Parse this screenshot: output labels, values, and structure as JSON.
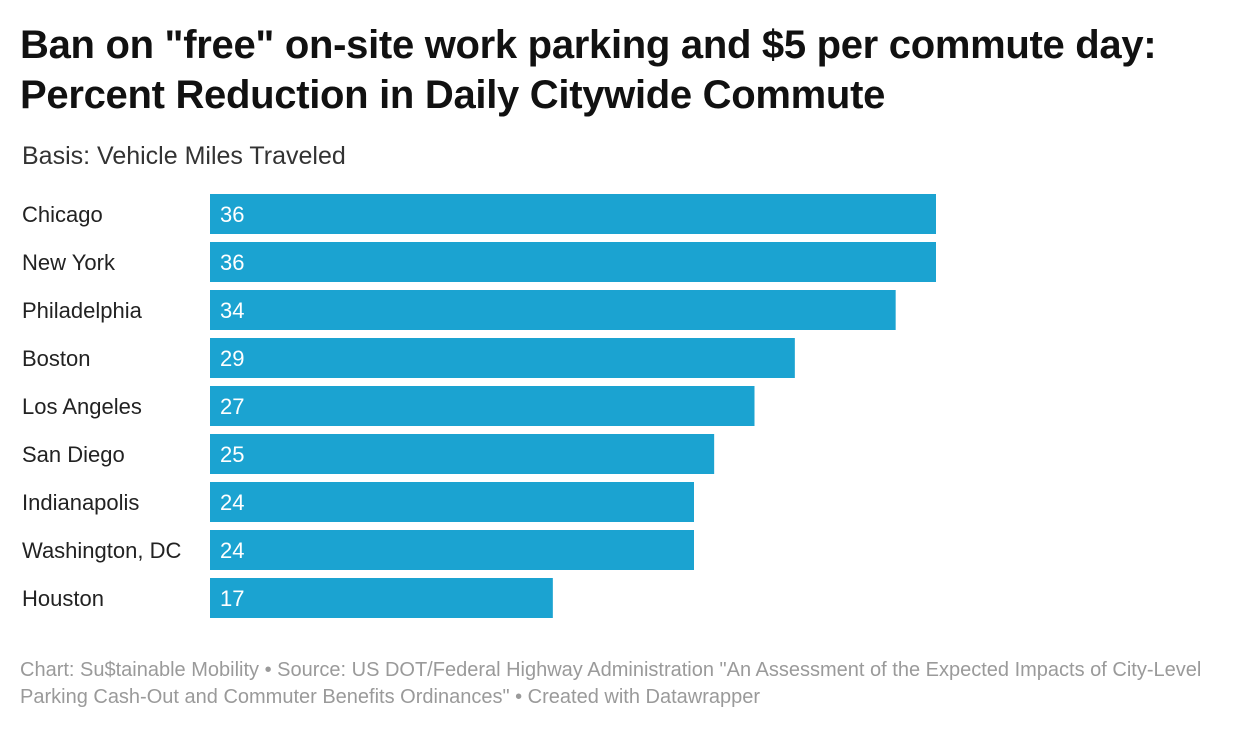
{
  "header": {
    "title_line1": "Ban on \"free\" on-site work parking and $5 per commute day:",
    "title_line2": "Percent Reduction in Daily Citywide Commute",
    "subtitle": "Basis: Vehicle Miles Traveled"
  },
  "footer": {
    "chart_credit": "Chart: Su$tainable Mobility",
    "separator1": " • ",
    "source": "Source: US DOT/Federal Highway Administration \"An Assessment of the Expected Impacts of City-Level Parking Cash-Out and Commuter Benefits Ordinances\"",
    "separator2": " • ",
    "created_with": "Created with Datawrapper"
  },
  "chart_data": {
    "type": "bar",
    "orientation": "horizontal",
    "categories": [
      "Chicago",
      "New York",
      "Philadelphia",
      "Boston",
      "Los Angeles",
      "San Diego",
      "Indianapolis",
      "Washington, DC",
      "Houston"
    ],
    "values": [
      36,
      36,
      34,
      29,
      27,
      25,
      24,
      24,
      17
    ],
    "title": "Ban on \"free\" on-site work parking and $5 per commute day: Percent Reduction in Daily Citywide Commute",
    "subtitle": "Basis: Vehicle Miles Traveled",
    "xlabel": "",
    "ylabel": "",
    "xlim": [
      0,
      36
    ],
    "grid": false,
    "legend": "none",
    "bar_color": "#1ba3d1",
    "value_label_color": "#ffffff"
  }
}
